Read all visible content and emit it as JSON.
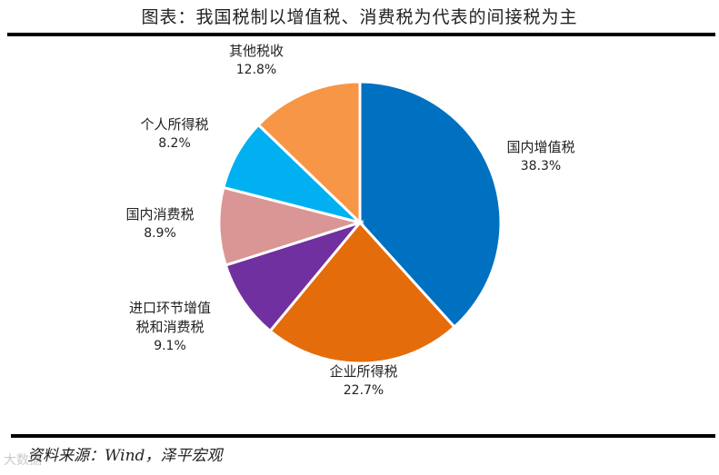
{
  "title": "图表：我国税制以增值税、消费税为代表的间接税为主",
  "source": "资料来源：Wind，泽平宏观",
  "watermark": "大数据",
  "chart_data": {
    "type": "pie",
    "title": "图表：我国税制以增值税、消费税为代表的间接税为主",
    "start_angle": "12 o'clock, clockwise",
    "categories": [
      "国内增值税",
      "企业所得税",
      "进口环节增值税和消费税",
      "国内消费税",
      "个人所得税",
      "其他税收"
    ],
    "values": [
      38.3,
      22.7,
      9.1,
      8.9,
      8.2,
      12.8
    ],
    "unit": "%",
    "colors": [
      "#0070C0",
      "#E46C0A",
      "#7030A0",
      "#D99694",
      "#00B0F0",
      "#F79646"
    ],
    "labels": [
      {
        "name": "国内增值税",
        "lines": [
          "国内增值税"
        ],
        "pct": "38.3%"
      },
      {
        "name": "企业所得税",
        "lines": [
          "企业所得税"
        ],
        "pct": "22.7%"
      },
      {
        "name": "进口环节增值税和消费税",
        "lines": [
          "进口环节增值",
          "税和消费税"
        ],
        "pct": "9.1%"
      },
      {
        "name": "国内消费税",
        "lines": [
          "国内消费税"
        ],
        "pct": "8.9%"
      },
      {
        "name": "个人所得税",
        "lines": [
          "个人所得税"
        ],
        "pct": "8.2%"
      },
      {
        "name": "其他税收",
        "lines": [
          "其他税收"
        ],
        "pct": "12.8%"
      }
    ],
    "legend": "none (data labels outside slices)"
  }
}
